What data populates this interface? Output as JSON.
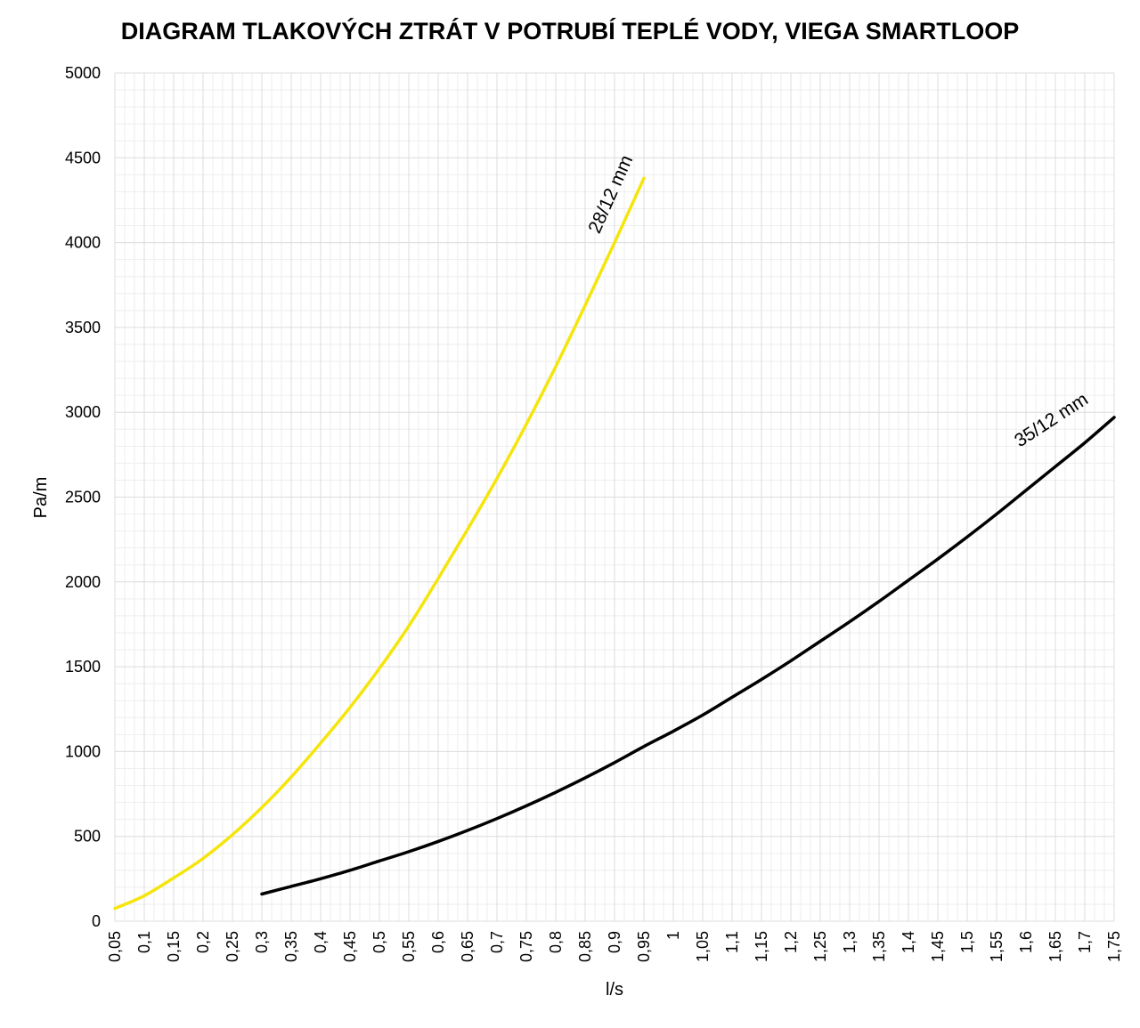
{
  "chart_data": {
    "type": "line",
    "title": "DIAGRAM TLAKOVÝCH ZTRÁT V POTRUBÍ TEPLÉ VODY, VIEGA SMARTLOOP",
    "xlabel": "l/s",
    "ylabel": "Pa/m",
    "xlim": [
      0.05,
      1.75
    ],
    "ylim": [
      0,
      5000
    ],
    "x_ticks": [
      "0,05",
      "0,1",
      "0,15",
      "0,2",
      "0,25",
      "0,3",
      "0,35",
      "0,4",
      "0,45",
      "0,5",
      "0,55",
      "0,6",
      "0,65",
      "0,7",
      "0,75",
      "0,8",
      "0,85",
      "0,9",
      "0,95",
      "1",
      "1,05",
      "1,1",
      "1,15",
      "1,2",
      "1,25",
      "1,3",
      "1,35",
      "1,4",
      "1,45",
      "1,5",
      "1,55",
      "1,6",
      "1,65",
      "1,7",
      "1,75"
    ],
    "y_ticks": [
      0,
      500,
      1000,
      1500,
      2000,
      2500,
      3000,
      3500,
      4000,
      4500,
      5000
    ],
    "grid": true,
    "legend": "none",
    "series": [
      {
        "name": "28/12 mm",
        "color": "#f5e50d",
        "x": [
          0.05,
          0.1,
          0.15,
          0.2,
          0.25,
          0.3,
          0.35,
          0.4,
          0.45,
          0.5,
          0.55,
          0.6,
          0.65,
          0.7,
          0.75,
          0.8,
          0.85,
          0.9,
          0.95
        ],
        "y": [
          75,
          150,
          255,
          370,
          510,
          670,
          850,
          1050,
          1260,
          1490,
          1740,
          2020,
          2310,
          2610,
          2930,
          3270,
          3630,
          4000,
          4380
        ]
      },
      {
        "name": "35/12 mm",
        "color": "#000000",
        "x": [
          0.3,
          0.35,
          0.4,
          0.45,
          0.5,
          0.55,
          0.6,
          0.65,
          0.7,
          0.75,
          0.8,
          0.85,
          0.9,
          0.95,
          1.0,
          1.05,
          1.1,
          1.15,
          1.2,
          1.25,
          1.3,
          1.35,
          1.4,
          1.45,
          1.5,
          1.55,
          1.6,
          1.65,
          1.7,
          1.75
        ],
        "y": [
          160,
          205,
          250,
          300,
          355,
          410,
          470,
          535,
          605,
          680,
          760,
          845,
          935,
          1030,
          1120,
          1215,
          1320,
          1425,
          1535,
          1650,
          1765,
          1885,
          2010,
          2135,
          2265,
          2400,
          2540,
          2680,
          2820,
          2970
        ]
      }
    ]
  }
}
